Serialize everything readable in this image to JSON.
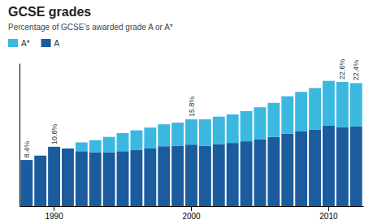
{
  "chart_data": {
    "type": "bar",
    "stacked": true,
    "title": "GCSE grades",
    "subtitle": "Percentage of GCSE’s awarded grade A or A*",
    "categories": [
      null,
      null,
      "1990",
      null,
      null,
      null,
      null,
      null,
      null,
      null,
      null,
      null,
      "2000",
      null,
      null,
      null,
      null,
      null,
      null,
      null,
      null,
      null,
      "2010",
      null,
      null
    ],
    "series": [
      {
        "name": "A",
        "color": "#1a5c9e",
        "values": [
          8.4,
          9.2,
          10.8,
          10.5,
          10.0,
          9.8,
          9.8,
          10.0,
          10.2,
          10.5,
          10.9,
          11.0,
          11.2,
          11.0,
          11.3,
          11.5,
          11.8,
          12.2,
          12.6,
          13.2,
          13.6,
          13.9,
          14.7,
          14.4,
          14.5
        ]
      },
      {
        "name": "A*",
        "color": "#3bb8e0",
        "values": [
          0.0,
          0.0,
          0.0,
          0.0,
          1.6,
          2.2,
          2.8,
          3.3,
          3.6,
          3.8,
          4.0,
          4.2,
          4.6,
          4.8,
          5.0,
          5.2,
          5.5,
          5.8,
          6.2,
          6.8,
          7.2,
          7.6,
          8.1,
          8.2,
          7.9
        ]
      }
    ],
    "totals": [
      8.4,
      null,
      10.8,
      null,
      null,
      null,
      null,
      null,
      null,
      null,
      null,
      null,
      15.8,
      null,
      null,
      null,
      null,
      null,
      null,
      null,
      null,
      null,
      null,
      22.6,
      22.4
    ],
    "total_labels": [
      "8.4%",
      null,
      "10.8%",
      null,
      null,
      null,
      null,
      null,
      null,
      null,
      null,
      null,
      "15.8%",
      null,
      null,
      null,
      null,
      null,
      null,
      null,
      null,
      null,
      null,
      "22.6%",
      "22.4%"
    ],
    "ylim": [
      0,
      26
    ],
    "tick_labels": "x",
    "legend": "top-left"
  }
}
